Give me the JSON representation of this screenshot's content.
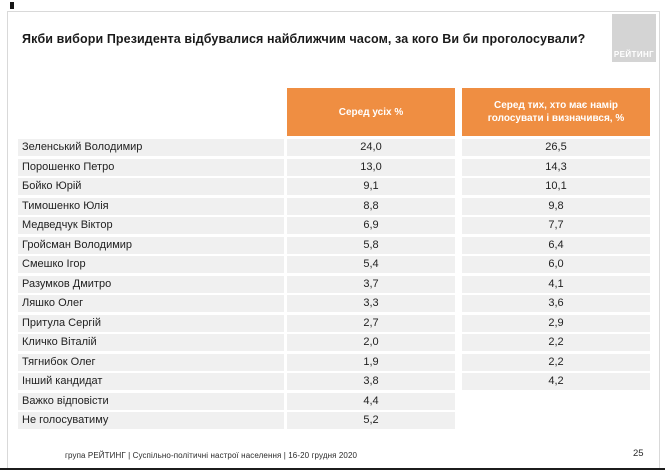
{
  "slide": {
    "title": "Якби вибори Президента відбувалися найближчим часом, за кого Ви би проголосували?",
    "logo_text": "РЕЙТИНГ",
    "footer": "група РЕЙТИНГ | Суспільно-політичні настрої населення | 16-20 грудня 2020",
    "page_number": "25"
  },
  "colors": {
    "header_orange": "#EF8E42",
    "row_gray": "#F0F0F0",
    "logo_gray": "#D4D4D4",
    "title_text": "#1A1A1A",
    "body_text": "#222222"
  },
  "chart_data": {
    "type": "table",
    "title": "Якби вибори Президента відбувалися найближчим часом, за кого Ви би проголосували?",
    "columns": [
      "Серед усіх %",
      "Серед тих, хто має намір голосувати і визначився, %"
    ],
    "rows": [
      {
        "name": "Зеленський Володимир",
        "among_all": "24,0",
        "among_decided": "26,5"
      },
      {
        "name": "Порошенко Петро",
        "among_all": "13,0",
        "among_decided": "14,3"
      },
      {
        "name": "Бойко Юрій",
        "among_all": "9,1",
        "among_decided": "10,1"
      },
      {
        "name": "Тимошенко Юлія",
        "among_all": "8,8",
        "among_decided": "9,8"
      },
      {
        "name": "Медведчук Віктор",
        "among_all": "6,9",
        "among_decided": "7,7"
      },
      {
        "name": "Гройсман Володимир",
        "among_all": "5,8",
        "among_decided": "6,4"
      },
      {
        "name": "Смешко Ігор",
        "among_all": "5,4",
        "among_decided": "6,0"
      },
      {
        "name": "Разумков Дмитро",
        "among_all": "3,7",
        "among_decided": "4,1"
      },
      {
        "name": "Ляшко Олег",
        "among_all": "3,3",
        "among_decided": "3,6"
      },
      {
        "name": "Притула Сергій",
        "among_all": "2,7",
        "among_decided": "2,9"
      },
      {
        "name": "Кличко Віталій",
        "among_all": "2,0",
        "among_decided": "2,2"
      },
      {
        "name": "Тягнибок Олег",
        "among_all": "1,9",
        "among_decided": "2,2"
      },
      {
        "name": "Інший кандидат",
        "among_all": "3,8",
        "among_decided": "4,2"
      },
      {
        "name": "Важко відповісти",
        "among_all": "4,4",
        "among_decided": ""
      },
      {
        "name": "Не голосуватиму",
        "among_all": "5,2",
        "among_decided": ""
      }
    ]
  }
}
